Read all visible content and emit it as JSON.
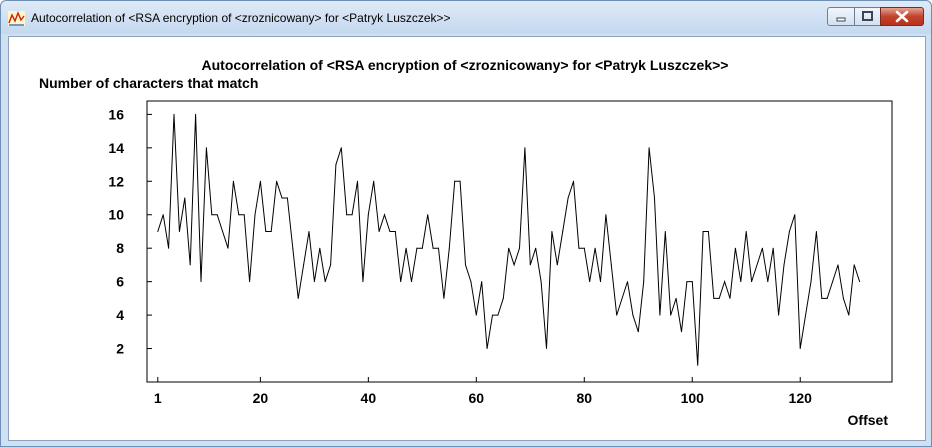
{
  "window": {
    "title": "Autocorrelation of <RSA encryption of <zroznicowany> for <Patryk Luszczek>>",
    "icon": "chart-app-icon",
    "controls": [
      "minimize-icon",
      "maximize-icon",
      "close-icon"
    ]
  },
  "chart_data": {
    "type": "line",
    "title": "Autocorrelation of <RSA encryption of <zroznicowany> for <Patryk Luszczek>>",
    "ylabel": "Number of characters that match",
    "xlabel": "Offset",
    "x_ticks": [
      1,
      20,
      40,
      60,
      80,
      100,
      120
    ],
    "y_ticks": [
      2,
      4,
      6,
      8,
      10,
      12,
      14,
      16
    ],
    "xlim": [
      -1,
      137
    ],
    "ylim": [
      0,
      16.8
    ],
    "grid": false,
    "legend": "none",
    "series": [
      {
        "x_start": 1,
        "values": [
          9,
          10,
          8,
          16,
          9,
          11,
          7,
          16,
          6,
          14,
          10,
          10,
          9,
          8,
          12,
          10,
          10,
          6,
          10,
          12,
          9,
          9,
          12,
          11,
          11,
          8,
          5,
          7,
          9,
          6,
          8,
          6,
          7,
          13,
          14,
          10,
          10,
          12,
          6,
          10,
          12,
          9,
          10,
          9,
          9,
          6,
          8,
          6,
          8,
          8,
          10,
          8,
          8,
          5,
          8,
          12,
          12,
          7,
          6,
          4,
          6,
          2,
          4,
          4,
          5,
          8,
          7,
          8,
          14,
          7,
          8,
          6,
          2,
          9,
          7,
          9,
          11,
          12,
          8,
          8,
          6,
          8,
          6,
          10,
          7,
          4,
          5,
          6,
          4,
          3,
          6,
          14,
          11,
          4,
          9,
          4,
          5,
          3,
          6,
          6,
          1,
          9,
          9,
          5,
          5,
          6,
          5,
          8,
          6,
          9,
          6,
          7,
          8,
          6,
          8,
          4,
          7,
          9,
          10,
          2,
          4,
          6,
          9,
          5,
          5,
          6,
          7,
          5,
          4,
          7,
          6
        ]
      }
    ]
  }
}
